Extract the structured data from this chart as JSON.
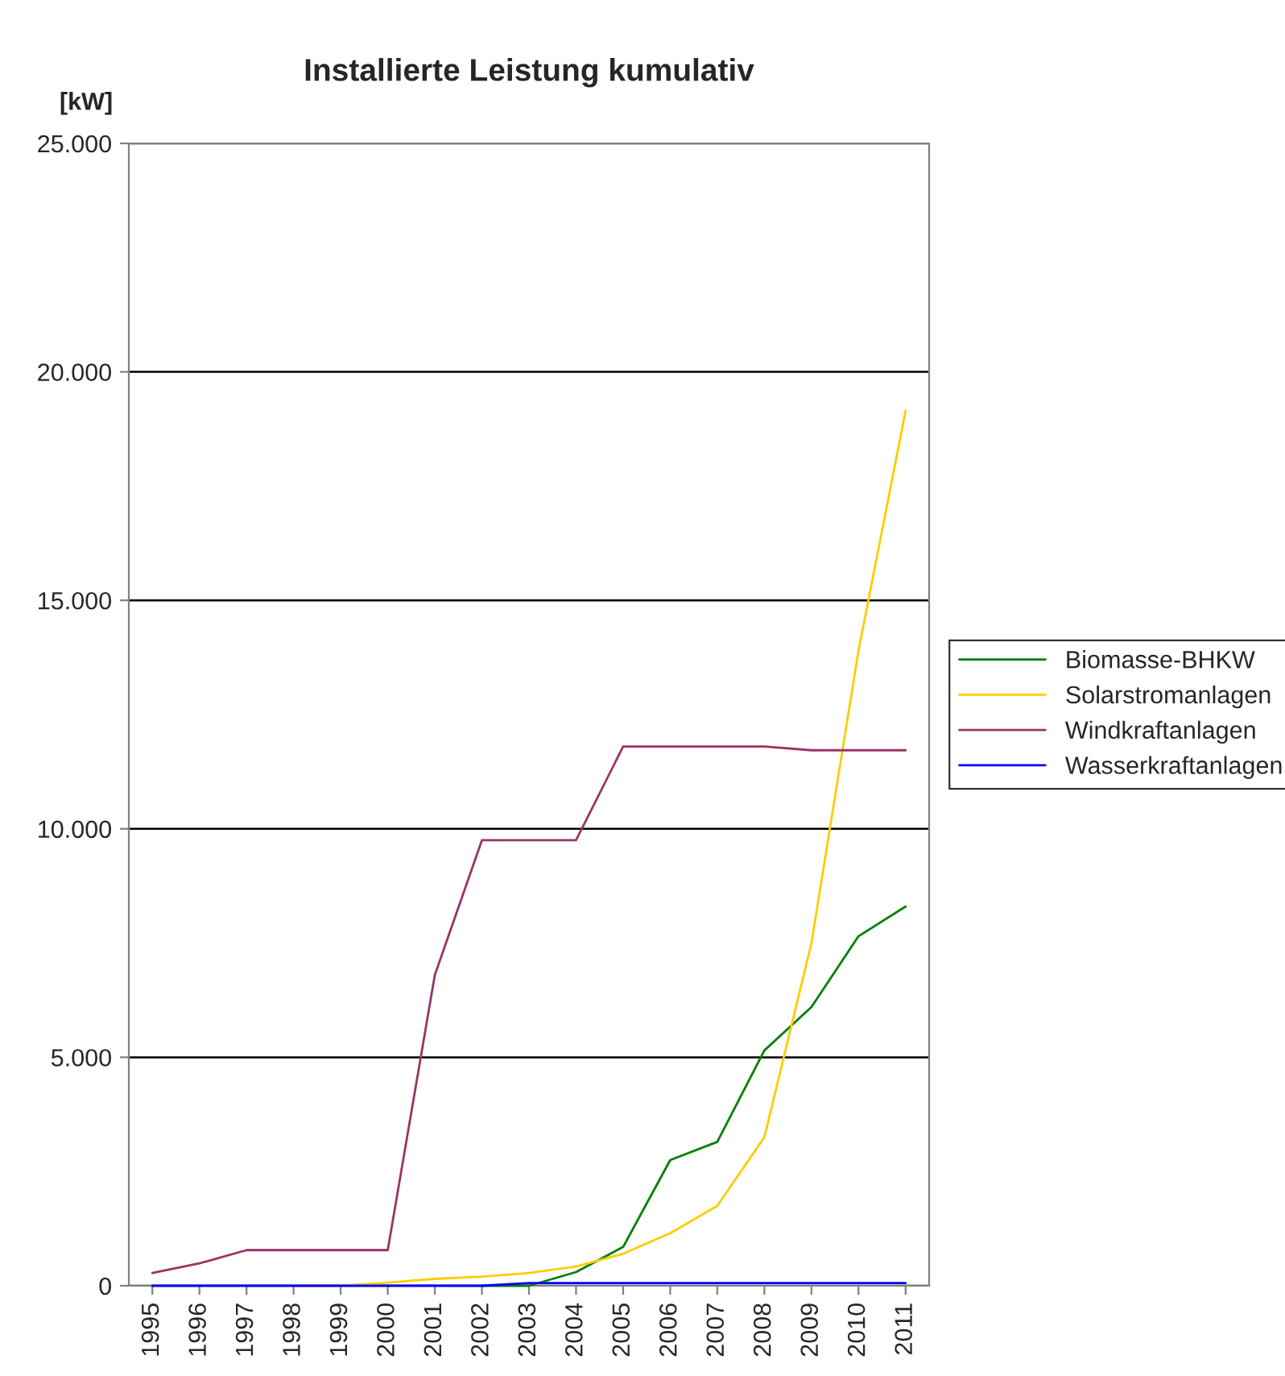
{
  "chart_data": {
    "type": "line",
    "title": "Installierte Leistung kumulativ",
    "ylabel": "[kW]",
    "categories": [
      "1995",
      "1996",
      "1997",
      "1998",
      "1999",
      "2000",
      "2001",
      "2002",
      "2003",
      "2004",
      "2005",
      "2006",
      "2007",
      "2008",
      "2009",
      "2010",
      "2011"
    ],
    "series": [
      {
        "name": "Biomasse-BHKW",
        "color": "#008000",
        "values": [
          null,
          null,
          null,
          null,
          null,
          null,
          null,
          0,
          0,
          300,
          850,
          2750,
          3150,
          5150,
          6100,
          7650,
          8300
        ]
      },
      {
        "name": "Solarstromanlagen",
        "color": "#ffcc00",
        "values": [
          null,
          null,
          null,
          0,
          0,
          70,
          150,
          200,
          280,
          420,
          700,
          1150,
          1750,
          3250,
          7500,
          13900,
          19150
        ]
      },
      {
        "name": "Windkraftanlagen",
        "color": "#993366",
        "values": [
          280,
          490,
          780,
          780,
          780,
          780,
          6800,
          9750,
          9750,
          9750,
          11800,
          11800,
          11800,
          11800,
          11720,
          11720,
          11720
        ]
      },
      {
        "name": "Wasserkraftanlagen",
        "color": "#0000ff",
        "values": [
          0,
          0,
          0,
          0,
          0,
          0,
          0,
          0,
          60,
          60,
          60,
          60,
          60,
          60,
          60,
          60,
          60
        ]
      }
    ],
    "ylim": [
      0,
      25000
    ],
    "yticks": [
      {
        "value": 0,
        "label": "0"
      },
      {
        "value": 5000,
        "label": "5.000"
      },
      {
        "value": 10000,
        "label": "10.000"
      },
      {
        "value": 15000,
        "label": "15.000"
      },
      {
        "value": 20000,
        "label": "20.000"
      },
      {
        "value": 25000,
        "label": "25.000"
      }
    ],
    "grid": "y",
    "legend": "right",
    "marker": "none",
    "line_style": "solid"
  }
}
